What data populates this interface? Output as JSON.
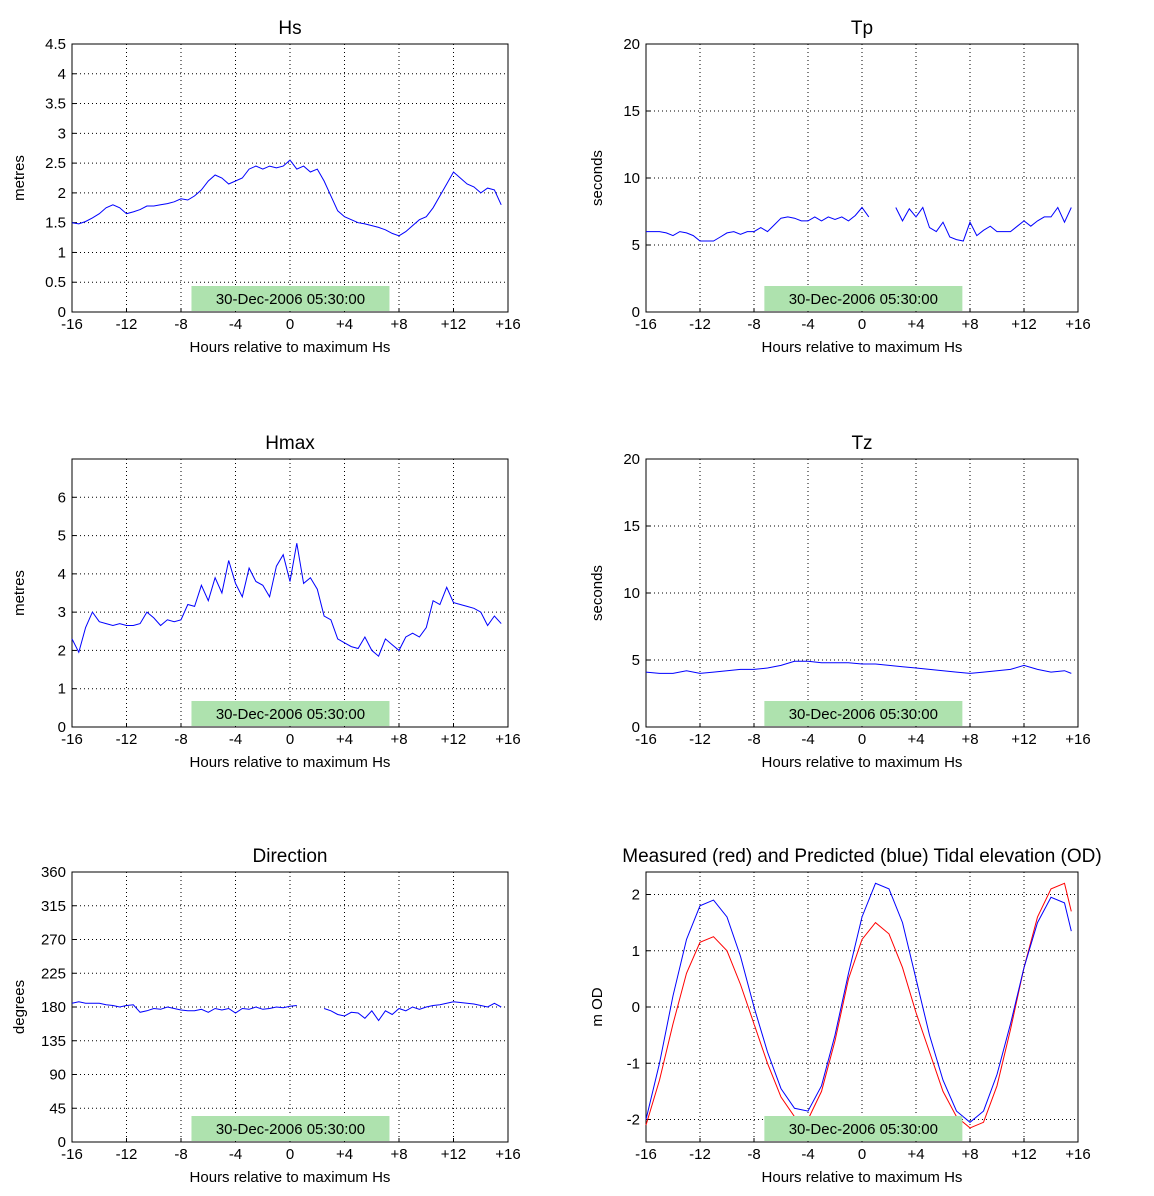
{
  "chart_data": [
    {
      "type": "line",
      "title": "Hs",
      "xlabel": "Hours relative to maximum Hs",
      "ylabel": "metres",
      "xlim": [
        -16,
        16
      ],
      "ylim": [
        0,
        4.5
      ],
      "xticks": [
        -16,
        -12,
        -8,
        -4,
        0,
        4,
        8,
        12,
        16
      ],
      "xtick_labels": [
        "-16",
        "-12",
        "-8",
        "-4",
        "0",
        "+4",
        "+8",
        "+12",
        "+16"
      ],
      "yticks": [
        0,
        0.5,
        1,
        1.5,
        2,
        2.5,
        3,
        3.5,
        4,
        4.5
      ],
      "ytick_labels": [
        "0",
        "0.5",
        "1",
        "1.5",
        "2",
        "2.5",
        "3",
        "3.5",
        "4",
        "4.5"
      ],
      "grid": true,
      "annotation": "30-Dec-2006 05:30:00",
      "series": [
        {
          "color": "#0000ff",
          "x": [
            -16,
            -15.5,
            -15,
            -14.5,
            -14,
            -13.5,
            -13,
            -12.5,
            -12,
            -11.5,
            -11,
            -10.5,
            -10,
            -9.5,
            -9,
            -8.5,
            -8,
            -7.5,
            -7,
            -6.5,
            -6,
            -5.5,
            -5,
            -4.5,
            -4,
            -3.5,
            -3,
            -2.5,
            -2,
            -1.5,
            -1,
            -0.5,
            0,
            0.5,
            1,
            1.5,
            2,
            2.5,
            3,
            3.5,
            4,
            4.5,
            5,
            5.5,
            6,
            6.5,
            7,
            7.5,
            8,
            8.5,
            9,
            9.5,
            10,
            10.5,
            11,
            11.5,
            12,
            12.5,
            13,
            13.5,
            14,
            14.5,
            15,
            15.5
          ],
          "y": [
            1.5,
            1.48,
            1.52,
            1.58,
            1.65,
            1.75,
            1.8,
            1.75,
            1.65,
            1.68,
            1.72,
            1.78,
            1.78,
            1.8,
            1.82,
            1.85,
            1.9,
            1.88,
            1.95,
            2.05,
            2.2,
            2.3,
            2.25,
            2.15,
            2.2,
            2.25,
            2.4,
            2.45,
            2.4,
            2.45,
            2.42,
            2.45,
            2.55,
            2.4,
            2.45,
            2.35,
            2.4,
            2.2,
            1.95,
            1.7,
            1.6,
            1.55,
            1.5,
            1.48,
            1.45,
            1.42,
            1.38,
            1.32,
            1.28,
            1.35,
            1.45,
            1.55,
            1.6,
            1.75,
            1.95,
            2.15,
            2.35,
            2.25,
            2.15,
            2.1,
            2.0,
            2.08,
            2.05,
            1.8
          ]
        }
      ]
    },
    {
      "type": "line",
      "title": "Tp",
      "xlabel": "Hours relative to maximum Hs",
      "ylabel": "seconds",
      "xlim": [
        -16,
        16
      ],
      "ylim": [
        0,
        20
      ],
      "xticks": [
        -16,
        -12,
        -8,
        -4,
        0,
        4,
        8,
        12,
        16
      ],
      "xtick_labels": [
        "-16",
        "-12",
        "-8",
        "-4",
        "0",
        "+4",
        "+8",
        "+12",
        "+16"
      ],
      "yticks": [
        0,
        5,
        10,
        15,
        20
      ],
      "ytick_labels": [
        "0",
        "5",
        "10",
        "15",
        "20"
      ],
      "grid": true,
      "annotation": "30-Dec-2006 05:30:00",
      "series": [
        {
          "color": "#0000ff",
          "x": [
            -16,
            -15,
            -14.5,
            -14,
            -13.5,
            -13,
            -12.5,
            -12,
            -11.5,
            -11,
            -10.5,
            -10,
            -9.5,
            -9,
            -8.5,
            -8,
            -7.5,
            -7,
            -6.5,
            -6,
            -5.5,
            -5,
            -4.5,
            -4,
            -3.5,
            -3,
            -2.5,
            -2,
            -1.5,
            -1,
            -0.5,
            0,
            0.5
          ],
          "y": [
            6.0,
            6.0,
            5.9,
            5.7,
            6.0,
            5.9,
            5.7,
            5.3,
            5.3,
            5.3,
            5.6,
            5.9,
            6.0,
            5.8,
            6.0,
            6.0,
            6.3,
            6.0,
            6.5,
            7.0,
            7.1,
            7.0,
            6.8,
            6.8,
            7.1,
            6.8,
            7.1,
            6.9,
            7.1,
            6.8,
            7.2,
            7.8,
            7.1
          ]
        },
        {
          "color": "#0000ff",
          "x": [
            2.5,
            3,
            3.5,
            4,
            4.5,
            5,
            5.5,
            6,
            6.5,
            7,
            7.5,
            8,
            8.5,
            9,
            9.5,
            10,
            10.5,
            11,
            11.5,
            12,
            12.5,
            13,
            13.5,
            14,
            14.5,
            15,
            15.5
          ],
          "y": [
            7.8,
            6.8,
            7.7,
            7.1,
            7.8,
            6.3,
            6.0,
            6.7,
            5.6,
            5.4,
            5.3,
            6.7,
            5.7,
            6.1,
            6.4,
            6.0,
            6.0,
            6.0,
            6.4,
            6.8,
            6.4,
            6.8,
            7.1,
            7.1,
            7.8,
            6.7,
            7.8
          ]
        }
      ]
    },
    {
      "type": "line",
      "title": "Hmax",
      "xlabel": "Hours relative to maximum Hs",
      "ylabel": "metres",
      "xlim": [
        -16,
        16
      ],
      "ylim": [
        0,
        7
      ],
      "xticks": [
        -16,
        -12,
        -8,
        -4,
        0,
        4,
        8,
        12,
        16
      ],
      "xtick_labels": [
        "-16",
        "-12",
        "-8",
        "-4",
        "0",
        "+4",
        "+8",
        "+12",
        "+16"
      ],
      "yticks": [
        0,
        1,
        2,
        3,
        4,
        5,
        6
      ],
      "ytick_labels": [
        "0",
        "1",
        "2",
        "3",
        "4",
        "5",
        "6"
      ],
      "grid": true,
      "annotation": "30-Dec-2006 05:30:00",
      "series": [
        {
          "color": "#0000ff",
          "x": [
            -16,
            -15.5,
            -15,
            -14.5,
            -14,
            -13.5,
            -13,
            -12.5,
            -12,
            -11.5,
            -11,
            -10.5,
            -10,
            -9.5,
            -9,
            -8.5,
            -8,
            -7.5,
            -7,
            -6.5,
            -6,
            -5.5,
            -5,
            -4.5,
            -4,
            -3.5,
            -3,
            -2.5,
            -2,
            -1.5,
            -1,
            -0.5,
            0,
            0.5,
            1,
            1.5,
            2,
            2.5,
            3,
            3.5,
            4,
            4.5,
            5,
            5.5,
            6,
            6.5,
            7,
            7.5,
            8,
            8.5,
            9,
            9.5,
            10,
            10.5,
            11,
            11.5,
            12,
            12.5,
            13,
            13.5,
            14,
            14.5,
            15,
            15.5
          ],
          "y": [
            2.3,
            1.95,
            2.6,
            3.0,
            2.75,
            2.7,
            2.65,
            2.7,
            2.65,
            2.65,
            2.7,
            3.0,
            2.85,
            2.65,
            2.8,
            2.75,
            2.8,
            3.2,
            3.15,
            3.7,
            3.3,
            3.9,
            3.5,
            4.35,
            3.75,
            3.4,
            4.15,
            3.8,
            3.7,
            3.4,
            4.2,
            4.5,
            3.8,
            4.8,
            3.75,
            3.9,
            3.6,
            2.9,
            2.8,
            2.3,
            2.2,
            2.1,
            2.05,
            2.35,
            2.0,
            1.85,
            2.3,
            2.15,
            2.0,
            2.35,
            2.45,
            2.35,
            2.6,
            3.3,
            3.2,
            3.65,
            3.25,
            3.2,
            3.15,
            3.1,
            3.0,
            2.65,
            2.9,
            2.7
          ]
        }
      ]
    },
    {
      "type": "line",
      "title": "Tz",
      "xlabel": "Hours relative to maximum Hs",
      "ylabel": "seconds",
      "xlim": [
        -16,
        16
      ],
      "ylim": [
        0,
        20
      ],
      "xticks": [
        -16,
        -12,
        -8,
        -4,
        0,
        4,
        8,
        12,
        16
      ],
      "xtick_labels": [
        "-16",
        "-12",
        "-8",
        "-4",
        "0",
        "+4",
        "+8",
        "+12",
        "+16"
      ],
      "yticks": [
        0,
        5,
        10,
        15,
        20
      ],
      "ytick_labels": [
        "0",
        "5",
        "10",
        "15",
        "20"
      ],
      "grid": true,
      "annotation": "30-Dec-2006 05:30:00",
      "series": [
        {
          "color": "#0000ff",
          "x": [
            -16,
            -15,
            -14,
            -13,
            -12,
            -11,
            -10,
            -9,
            -8,
            -7,
            -6,
            -5,
            -4,
            -3,
            -2,
            -1,
            0,
            1,
            2,
            3,
            4,
            5,
            6,
            7,
            8,
            9,
            10,
            11,
            12,
            13,
            14,
            15,
            15.5
          ],
          "y": [
            4.1,
            4.0,
            4.0,
            4.2,
            4.0,
            4.1,
            4.2,
            4.3,
            4.3,
            4.4,
            4.6,
            4.9,
            4.9,
            4.8,
            4.8,
            4.8,
            4.7,
            4.7,
            4.6,
            4.5,
            4.4,
            4.3,
            4.2,
            4.1,
            4.0,
            4.1,
            4.2,
            4.3,
            4.6,
            4.3,
            4.1,
            4.2,
            4.0
          ]
        }
      ]
    },
    {
      "type": "line",
      "title": "Direction",
      "xlabel": "Hours relative to maximum Hs",
      "ylabel": "degrees",
      "xlim": [
        -16,
        16
      ],
      "ylim": [
        0,
        360
      ],
      "xticks": [
        -16,
        -12,
        -8,
        -4,
        0,
        4,
        8,
        12,
        16
      ],
      "xtick_labels": [
        "-16",
        "-12",
        "-8",
        "-4",
        "0",
        "+4",
        "+8",
        "+12",
        "+16"
      ],
      "yticks": [
        0,
        45,
        90,
        135,
        180,
        225,
        270,
        315,
        360
      ],
      "ytick_labels": [
        "0",
        "45",
        "90",
        "135",
        "180",
        "225",
        "270",
        "315",
        "360"
      ],
      "grid": true,
      "annotation": "30-Dec-2006 05:30:00",
      "series": [
        {
          "color": "#0000ff",
          "x": [
            -16,
            -15.5,
            -15,
            -14.5,
            -14,
            -13.5,
            -13,
            -12.5,
            -12,
            -11.5,
            -11,
            -10.5,
            -10,
            -9.5,
            -9,
            -8.5,
            -8,
            -7.5,
            -7,
            -6.5,
            -6,
            -5.5,
            -5,
            -4.5,
            -4,
            -3.5,
            -3,
            -2.5,
            -2,
            -1.5,
            -1,
            -0.5,
            0,
            0.5
          ],
          "y": [
            185,
            187,
            185,
            185,
            185,
            183,
            182,
            180,
            182,
            183,
            173,
            175,
            178,
            177,
            180,
            178,
            176,
            175,
            175,
            177,
            173,
            178,
            176,
            178,
            172,
            178,
            177,
            180,
            177,
            178,
            180,
            179,
            181,
            182
          ]
        },
        {
          "color": "#0000ff",
          "x": [
            2.5,
            3,
            3.5,
            4,
            4.5,
            5,
            5.5,
            6,
            6.5,
            7,
            7.5,
            8,
            8.5,
            9,
            9.5,
            10,
            10.5,
            11,
            11.5,
            12,
            12.5,
            13,
            13.5,
            14,
            14.5,
            15,
            15.5
          ],
          "y": [
            178,
            175,
            170,
            168,
            173,
            172,
            165,
            175,
            162,
            175,
            170,
            178,
            175,
            180,
            177,
            180,
            182,
            183,
            185,
            187,
            186,
            185,
            184,
            182,
            180,
            185,
            180
          ]
        }
      ]
    },
    {
      "type": "line",
      "title": "Measured (red) and Predicted (blue) Tidal elevation (OD)",
      "xlabel": "Hours relative to maximum Hs",
      "ylabel": "m OD",
      "xlim": [
        -16,
        16
      ],
      "ylim": [
        -2.4,
        2.4
      ],
      "xticks": [
        -16,
        -12,
        -8,
        -4,
        0,
        4,
        8,
        12,
        16
      ],
      "xtick_labels": [
        "-16",
        "-12",
        "-8",
        "-4",
        "0",
        "+4",
        "+8",
        "+12",
        "+16"
      ],
      "yticks": [
        -2,
        -1,
        0,
        1,
        2
      ],
      "ytick_labels": [
        "-2",
        "-1",
        "0",
        "1",
        "2"
      ],
      "grid": true,
      "annotation": "30-Dec-2006 05:30:00",
      "series": [
        {
          "color": "#ff0000",
          "x": [
            -16,
            -15,
            -14,
            -13,
            -12,
            -11,
            -10,
            -9,
            -8,
            -7,
            -6,
            -5,
            -4,
            -3,
            -2,
            -1,
            0,
            1,
            2,
            3,
            4,
            5,
            6,
            7,
            8,
            9,
            10,
            11,
            12,
            13,
            14,
            15,
            15.5
          ],
          "y": [
            -2.1,
            -1.3,
            -0.3,
            0.6,
            1.15,
            1.25,
            1.0,
            0.4,
            -0.3,
            -1.0,
            -1.6,
            -1.95,
            -2.0,
            -1.5,
            -0.6,
            0.5,
            1.2,
            1.5,
            1.3,
            0.7,
            -0.1,
            -0.8,
            -1.5,
            -1.95,
            -2.15,
            -2.05,
            -1.4,
            -0.4,
            0.7,
            1.6,
            2.1,
            2.2,
            1.7
          ]
        },
        {
          "color": "#0000ff",
          "x": [
            -16,
            -15,
            -14,
            -13,
            -12,
            -11,
            -10,
            -9,
            -8,
            -7,
            -6,
            -5,
            -4,
            -3,
            -2,
            -1,
            0,
            1,
            2,
            3,
            4,
            5,
            6,
            7,
            8,
            9,
            10,
            11,
            12,
            13,
            14,
            15,
            15.5
          ],
          "y": [
            -2.0,
            -1.0,
            0.2,
            1.2,
            1.8,
            1.9,
            1.6,
            0.9,
            0.0,
            -0.8,
            -1.45,
            -1.8,
            -1.85,
            -1.4,
            -0.5,
            0.6,
            1.6,
            2.2,
            2.1,
            1.5,
            0.5,
            -0.5,
            -1.3,
            -1.85,
            -2.05,
            -1.85,
            -1.2,
            -0.3,
            0.7,
            1.5,
            1.95,
            1.85,
            1.35
          ]
        }
      ]
    }
  ]
}
